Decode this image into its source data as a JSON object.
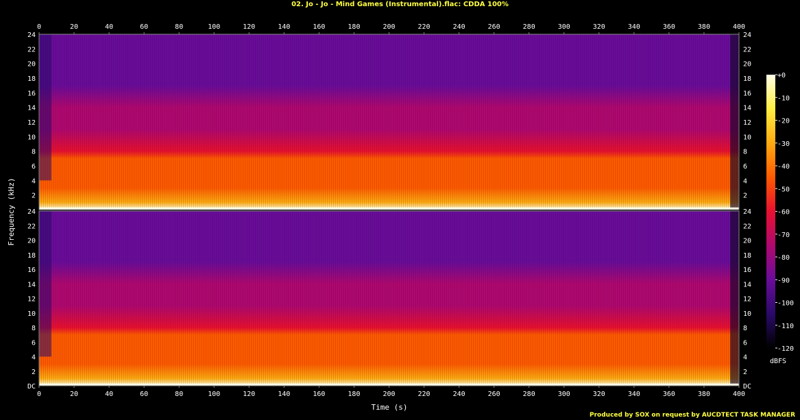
{
  "title": "02. Jo - Jo - Mind Games (Instrumental).flac: CDDA 100%",
  "credit": "Produced by SOX on request by AUCDTECT TASK MANAGER",
  "chart_data": {
    "type": "heatmap",
    "xlabel": "Time (s)",
    "ylabel": "Frequency (kHz)",
    "xlim": [
      0,
      400
    ],
    "x_ticks": [
      0,
      20,
      40,
      60,
      80,
      100,
      120,
      140,
      160,
      180,
      200,
      220,
      240,
      260,
      280,
      300,
      320,
      340,
      360,
      380,
      400
    ],
    "ylim": [
      0,
      24
    ],
    "y_ticks": [
      "DC",
      "2",
      "4",
      "6",
      "8",
      "10",
      "12",
      "14",
      "16",
      "18",
      "20",
      "22",
      "24"
    ],
    "channels": 2,
    "colorbar": {
      "label": "dBFS",
      "range": [
        -120,
        0
      ],
      "ticks": [
        "+0",
        "-10",
        "-20",
        "-30",
        "-40",
        "-50",
        "-60",
        "-70",
        "-80",
        "-90",
        "-100",
        "-110",
        "-120"
      ]
    },
    "colors": {
      "stop_0": "#ffffe8",
      "stop_1": "#ffee40",
      "stop_2": "#ffaa10",
      "stop_3": "#ff5a00",
      "stop_4": "#e81030",
      "stop_5": "#b00870",
      "stop_6": "#6a0c9a",
      "stop_7": "#2a0a6a",
      "stop_8": "#000000"
    },
    "levels_by_frequency": [
      {
        "khz": 0,
        "dbfs": -5
      },
      {
        "khz": 1,
        "dbfs": -28
      },
      {
        "khz": 3,
        "dbfs": -38
      },
      {
        "khz": 6,
        "dbfs": -48
      },
      {
        "khz": 7,
        "dbfs": -52
      },
      {
        "khz": 8,
        "dbfs": -60
      },
      {
        "khz": 11,
        "dbfs": -68
      },
      {
        "khz": 14,
        "dbfs": -76
      },
      {
        "khz": 17,
        "dbfs": -84
      },
      {
        "khz": 20,
        "dbfs": -88
      },
      {
        "khz": 24,
        "dbfs": -92
      }
    ]
  }
}
